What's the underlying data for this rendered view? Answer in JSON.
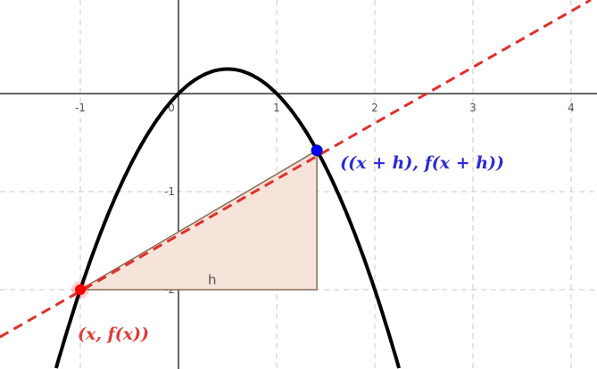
{
  "graph": {
    "function": "f(x) = x - x^2",
    "x_ticks": [
      "-1",
      "0",
      "1",
      "2",
      "3",
      "4"
    ],
    "y_ticks": [
      "-1",
      "-2"
    ],
    "point_a": {
      "x": -1,
      "y": -2,
      "label": "(x, f(x))",
      "color": "#ff0000"
    },
    "point_b": {
      "x": 1.41,
      "y": -0.58,
      "label": "((x + h), f(x + h))",
      "color": "#0000ff"
    },
    "h_label": "h",
    "colors": {
      "curve": "#000000",
      "secant": "#e0302a",
      "triangle_fill": "#f6e3da",
      "triangle_stroke": "#8a6a55",
      "grid": "#c8c8c8",
      "axis": "#666666"
    }
  }
}
